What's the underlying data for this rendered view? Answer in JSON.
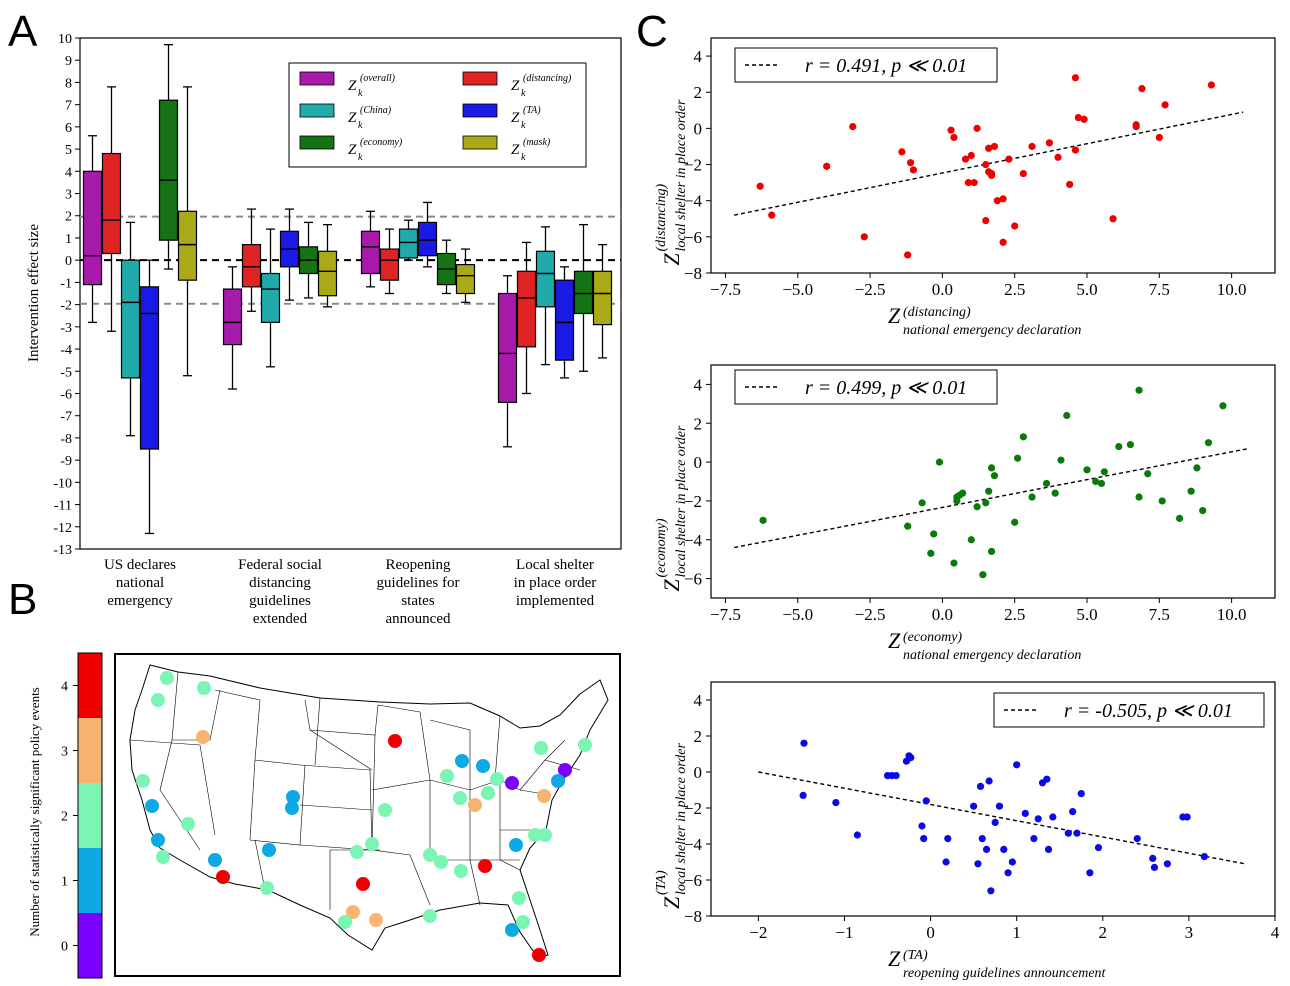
{
  "panels": {
    "a": "A",
    "b": "B",
    "c": "C"
  },
  "chart_data": [
    {
      "type": "box",
      "panel": "A",
      "ylabel": "Intervention effect size",
      "ylim": [
        -13,
        10
      ],
      "yticks": [
        "10",
        "9",
        "8",
        "7",
        "6",
        "5",
        "4",
        "3",
        "2",
        "1",
        "0",
        "-1",
        "-2",
        "-3",
        "-4",
        "-5",
        "-6",
        "-7",
        "-8",
        "-9",
        "-10",
        "-11",
        "-12",
        "-13"
      ],
      "threshold_lines": [
        1.96,
        0,
        -1.96
      ],
      "categories": [
        {
          "lines": [
            "US declares",
            "national",
            "emergency"
          ]
        },
        {
          "lines": [
            "Federal social",
            "distancing",
            "guidelines",
            "extended"
          ]
        },
        {
          "lines": [
            "Reopening",
            "guidelines for",
            "states",
            "announced"
          ]
        },
        {
          "lines": [
            "Local shelter",
            "in place order",
            "implemented"
          ]
        }
      ],
      "legend": [
        {
          "sup": "(overall)",
          "color": "#a71aaa"
        },
        {
          "sup": "(distancing)",
          "color": "#e02424"
        },
        {
          "sup": "(China)",
          "color": "#21aaaa"
        },
        {
          "sup": "(TA)",
          "color": "#1a1ae6"
        },
        {
          "sup": "(economy)",
          "color": "#157315"
        },
        {
          "sup": "(mask)",
          "color": "#aaaa18"
        }
      ],
      "series_colors": [
        "#a71aaa",
        "#e02424",
        "#21aaaa",
        "#1a1ae6",
        "#157315",
        "#aaaa18"
      ],
      "boxes": [
        [
          [
            -2.8,
            -1.1,
            0.2,
            4.0,
            5.6
          ],
          [
            -3.2,
            0.3,
            1.8,
            4.8,
            7.8
          ],
          [
            -7.9,
            -5.3,
            -1.9,
            0,
            1.7
          ],
          [
            -12.3,
            -8.5,
            -2.4,
            -1.2,
            0
          ],
          [
            -0.4,
            0.9,
            3.6,
            7.2,
            9.7
          ],
          [
            -5.2,
            -0.9,
            0.7,
            2.2,
            7.8
          ]
        ],
        [
          [
            -5.8,
            -3.8,
            -2.8,
            -1.3,
            -0.3
          ],
          [
            -2.3,
            -1.2,
            -0.3,
            0.7,
            2.3
          ],
          [
            -4.8,
            -2.8,
            -1.3,
            -0.6,
            1.4
          ],
          [
            -1.8,
            -0.3,
            0.5,
            1.3,
            2.3
          ],
          [
            -1.7,
            -0.6,
            0,
            0.6,
            1.7
          ],
          [
            -2.1,
            -1.6,
            -0.5,
            0.4,
            1.6
          ]
        ],
        [
          [
            -1.2,
            -0.6,
            0.6,
            1.3,
            2.2
          ],
          [
            -1.5,
            -0.9,
            0,
            0.5,
            1.4
          ],
          [
            0,
            0.1,
            0.8,
            1.4,
            1.8
          ],
          [
            -0.3,
            0.2,
            0.9,
            1.7,
            2.6
          ],
          [
            -1.5,
            -1.1,
            -0.4,
            0.3,
            0.9
          ],
          [
            -1.9,
            -1.5,
            -0.7,
            -0.2,
            0.5
          ]
        ],
        [
          [
            -8.4,
            -6.4,
            -4.2,
            -1.5,
            -0.7
          ],
          [
            -6.0,
            -3.9,
            -1.7,
            -0.5,
            0.8
          ],
          [
            -4.7,
            -2.1,
            -0.6,
            0.4,
            1.5
          ],
          [
            -5.3,
            -4.5,
            -2.8,
            -0.9,
            -0.3
          ],
          [
            -5.0,
            -2.4,
            -1.5,
            -0.5,
            1.6
          ],
          [
            -4.4,
            -2.9,
            -1.5,
            -0.5,
            0.7
          ]
        ]
      ]
    },
    {
      "type": "map",
      "panel": "B",
      "colorbar_label": "Number of statistically significant policy events",
      "colorbar_ticks": [
        "4",
        "3",
        "2",
        "1",
        "0"
      ],
      "colorbar_colors": [
        "#ee0000",
        "#f8b46e",
        "#7cf5b4",
        "#0ca9e4",
        "#7c00ff"
      ]
    },
    {
      "type": "scatter",
      "panel": "C1",
      "color": "#ee0000",
      "ylabel": {
        "main": "Z",
        "sup": "(distancing)",
        "sub": "local shelter in place order"
      },
      "xlabel": {
        "main": "Z",
        "sup": "(distancing)",
        "sub": "national emergency declaration"
      },
      "legend": "r = 0.491, p ≪ 0.01",
      "xlim": [
        -8.0,
        11.5
      ],
      "ylim": [
        -8,
        5
      ],
      "xticks": [
        "−7.5",
        "−5.0",
        "−2.5",
        "0.0",
        "2.5",
        "5.0",
        "7.5",
        "10.0"
      ],
      "yticks": [
        "4",
        "2",
        "0",
        "−2",
        "−4",
        "−6",
        "−8"
      ],
      "fit": [
        [
          -7.2,
          -4.8
        ],
        [
          10.4,
          0.9
        ]
      ],
      "points": [
        [
          -6.3,
          -3.2
        ],
        [
          -5.9,
          -4.8
        ],
        [
          -4.0,
          -2.1
        ],
        [
          -3.1,
          0.1
        ],
        [
          -2.7,
          -6.0
        ],
        [
          -1.4,
          -1.3
        ],
        [
          -1.1,
          -1.9
        ],
        [
          -1.0,
          -2.3
        ],
        [
          -1.2,
          -7.0
        ],
        [
          0.3,
          -0.1
        ],
        [
          0.4,
          -0.5
        ],
        [
          0.8,
          -1.7
        ],
        [
          1.0,
          -1.5
        ],
        [
          0.9,
          -3.0
        ],
        [
          1.1,
          -3.0
        ],
        [
          1.2,
          0.0
        ],
        [
          1.5,
          -5.1
        ],
        [
          1.6,
          -1.1
        ],
        [
          1.7,
          -2.5
        ],
        [
          1.7,
          -2.6
        ],
        [
          1.8,
          -1.0
        ],
        [
          1.9,
          -4.0
        ],
        [
          2.1,
          -3.9
        ],
        [
          2.1,
          -6.3
        ],
        [
          2.3,
          -1.7
        ],
        [
          2.5,
          -5.4
        ],
        [
          2.8,
          -2.5
        ],
        [
          3.1,
          -1.0
        ],
        [
          3.7,
          -0.8
        ],
        [
          4.0,
          -1.6
        ],
        [
          4.4,
          -3.1
        ],
        [
          4.6,
          -1.2
        ],
        [
          4.7,
          0.6
        ],
        [
          4.9,
          0.5
        ],
        [
          4.6,
          2.8
        ],
        [
          5.9,
          -5.0
        ],
        [
          6.7,
          0.2
        ],
        [
          6.7,
          0.1
        ],
        [
          6.9,
          2.2
        ],
        [
          7.5,
          -0.5
        ],
        [
          7.7,
          1.3
        ],
        [
          9.3,
          2.4
        ],
        [
          1.5,
          -2.0
        ],
        [
          1.6,
          -2.4
        ]
      ]
    },
    {
      "type": "scatter",
      "panel": "C2",
      "color": "#0a7a0a",
      "ylabel": {
        "main": "Z",
        "sup": "(economy)",
        "sub": "local shelter in place order"
      },
      "xlabel": {
        "main": "Z",
        "sup": "(economy)",
        "sub": "national emergency declaration"
      },
      "legend": "r = 0.499, p ≪ 0.01",
      "xlim": [
        -8.0,
        11.5
      ],
      "ylim": [
        -7,
        5
      ],
      "xticks": [
        "−7.5",
        "−5.0",
        "−2.5",
        "0.0",
        "2.5",
        "5.0",
        "7.5",
        "10.0"
      ],
      "yticks": [
        "4",
        "2",
        "0",
        "−2",
        "−4",
        "−6"
      ],
      "fit": [
        [
          -7.2,
          -4.4
        ],
        [
          10.6,
          0.7
        ]
      ],
      "points": [
        [
          -6.2,
          -3.0
        ],
        [
          -1.2,
          -3.3
        ],
        [
          -0.7,
          -2.1
        ],
        [
          -0.4,
          -4.7
        ],
        [
          -0.3,
          -3.7
        ],
        [
          -0.1,
          0.0
        ],
        [
          0.4,
          -5.2
        ],
        [
          0.5,
          -1.8
        ],
        [
          0.6,
          -1.7
        ],
        [
          0.7,
          -1.6
        ],
        [
          1.0,
          -4.0
        ],
        [
          1.2,
          -2.3
        ],
        [
          1.4,
          -5.8
        ],
        [
          1.5,
          -2.1
        ],
        [
          1.6,
          -1.5
        ],
        [
          1.7,
          -0.3
        ],
        [
          1.8,
          -0.7
        ],
        [
          1.7,
          -4.6
        ],
        [
          2.5,
          -3.1
        ],
        [
          2.6,
          0.2
        ],
        [
          2.8,
          1.3
        ],
        [
          3.1,
          -1.8
        ],
        [
          3.6,
          -1.1
        ],
        [
          3.9,
          -1.6
        ],
        [
          4.1,
          0.1
        ],
        [
          4.3,
          2.4
        ],
        [
          5.0,
          -0.4
        ],
        [
          5.3,
          -1.0
        ],
        [
          5.5,
          -1.1
        ],
        [
          5.6,
          -0.5
        ],
        [
          6.1,
          0.8
        ],
        [
          6.5,
          0.9
        ],
        [
          6.8,
          -1.8
        ],
        [
          6.8,
          3.7
        ],
        [
          7.1,
          -0.6
        ],
        [
          7.6,
          -2.0
        ],
        [
          8.2,
          -2.9
        ],
        [
          8.6,
          -1.5
        ],
        [
          8.8,
          -0.3
        ],
        [
          9.0,
          -2.5
        ],
        [
          9.2,
          1.0
        ],
        [
          9.7,
          2.9
        ],
        [
          0.5,
          -2.0
        ]
      ]
    },
    {
      "type": "scatter",
      "panel": "C3",
      "color": "#0a0ae6",
      "ylabel": {
        "main": "Z",
        "sup": "(TA)",
        "sub": "local shelter in place order"
      },
      "xlabel": {
        "main": "Z",
        "sup": "(TA)",
        "sub": "reopening guidelines announcement"
      },
      "legend": "r = -0.505, p ≪ 0.01",
      "xlim": [
        -2.55,
        4.0
      ],
      "ylim": [
        -8,
        5
      ],
      "xticks": [
        "−2",
        "−1",
        "0",
        "1",
        "2",
        "3",
        "4"
      ],
      "yticks": [
        "4",
        "2",
        "0",
        "−2",
        "−4",
        "−6",
        "−8"
      ],
      "fit": [
        [
          -2.0,
          0.0
        ],
        [
          3.65,
          -5.1
        ]
      ],
      "points": [
        [
          -1.47,
          1.6
        ],
        [
          -1.48,
          -1.3
        ],
        [
          -1.1,
          -1.7
        ],
        [
          -0.85,
          -3.5
        ],
        [
          -0.5,
          -0.2
        ],
        [
          -0.45,
          -0.2
        ],
        [
          -0.4,
          -0.2
        ],
        [
          -0.28,
          0.6
        ],
        [
          -0.25,
          0.9
        ],
        [
          -0.23,
          0.8
        ],
        [
          -0.1,
          -3.0
        ],
        [
          -0.08,
          -3.7
        ],
        [
          -0.05,
          -1.6
        ],
        [
          0.18,
          -5.0
        ],
        [
          0.2,
          -3.7
        ],
        [
          0.5,
          -1.9
        ],
        [
          0.55,
          -5.1
        ],
        [
          0.58,
          -0.8
        ],
        [
          0.6,
          -3.7
        ],
        [
          0.65,
          -4.3
        ],
        [
          0.68,
          -0.5
        ],
        [
          0.7,
          -6.6
        ],
        [
          0.75,
          -2.8
        ],
        [
          0.8,
          -1.9
        ],
        [
          0.85,
          -4.3
        ],
        [
          0.9,
          -5.6
        ],
        [
          0.95,
          -5.0
        ],
        [
          1.0,
          0.4
        ],
        [
          1.1,
          -2.3
        ],
        [
          1.2,
          -3.7
        ],
        [
          1.25,
          -2.6
        ],
        [
          1.3,
          -0.6
        ],
        [
          1.35,
          -0.4
        ],
        [
          1.37,
          -4.3
        ],
        [
          1.42,
          -2.5
        ],
        [
          1.6,
          -3.4
        ],
        [
          1.65,
          -2.2
        ],
        [
          1.7,
          -3.4
        ],
        [
          1.75,
          -1.2
        ],
        [
          1.85,
          -5.6
        ],
        [
          1.95,
          -4.2
        ],
        [
          2.4,
          -3.7
        ],
        [
          2.58,
          -4.8
        ],
        [
          2.6,
          -5.3
        ],
        [
          2.75,
          -5.1
        ],
        [
          2.93,
          -2.5
        ],
        [
          2.98,
          -2.5
        ],
        [
          3.18,
          -4.7
        ]
      ]
    }
  ]
}
